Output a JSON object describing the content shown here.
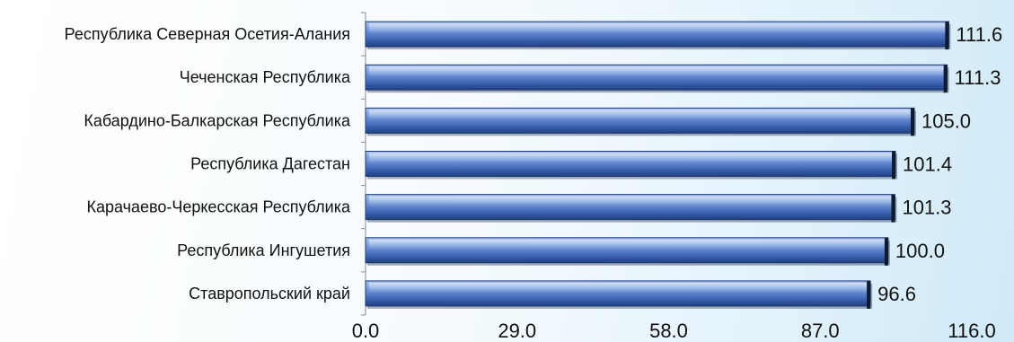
{
  "chart_data": {
    "type": "bar",
    "orientation": "horizontal",
    "categories": [
      "Республика Северная Осетия-Алания",
      "Чеченская Республика",
      "Кабардино-Балкарская Республика",
      "Республика Дагестан",
      "Карачаево-Черкесская Республика",
      "Республика Ингушетия",
      "Ставропольский край"
    ],
    "values": [
      111.6,
      111.3,
      105.0,
      101.4,
      101.3,
      100.0,
      96.6
    ],
    "value_labels": [
      "111.6",
      "111.3",
      "105.0",
      "101.4",
      "101.3",
      "100.0",
      "96.6"
    ],
    "x_ticks": [
      "0.0",
      "29.0",
      "58.0",
      "87.0",
      "116.0"
    ],
    "xlim": [
      0,
      116
    ],
    "title": "",
    "xlabel": "",
    "ylabel": "",
    "grid": false,
    "legend": "none",
    "colors": {
      "bar_light": "#a9c3ee",
      "bar_mid": "#4f7ccb",
      "bar_dark": "#1f3f82",
      "bar_edge": "#0e1a2e"
    }
  }
}
